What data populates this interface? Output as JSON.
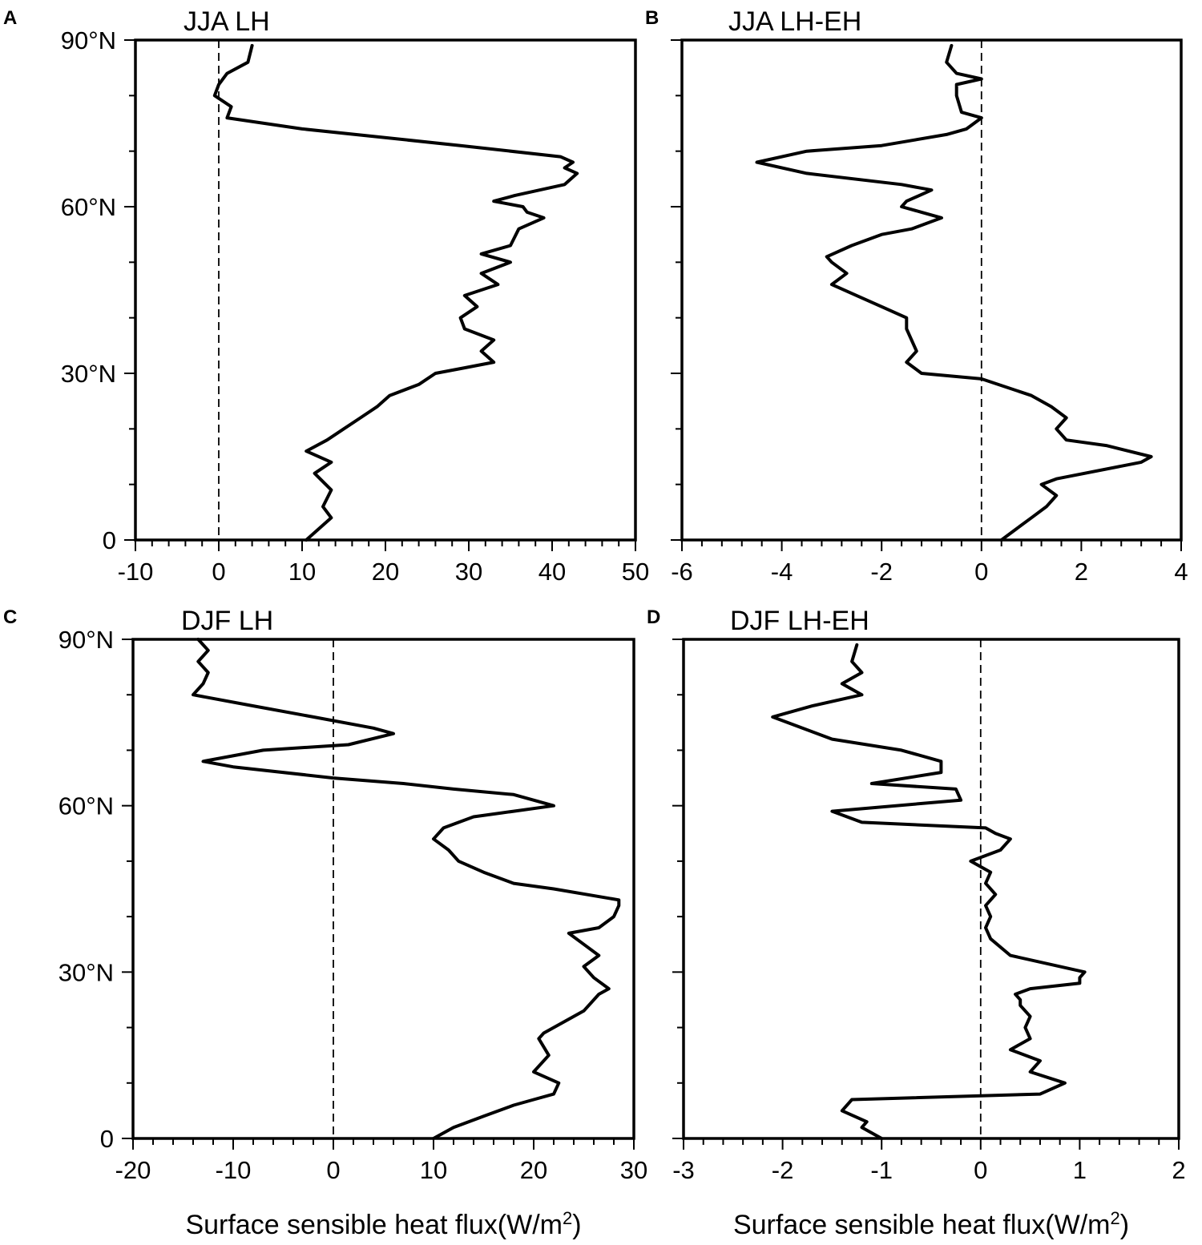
{
  "figure": {
    "xlabel": "Surface sensible heat flux(W/m",
    "xlabel_sup": "2",
    "xlabel_end": ")"
  },
  "chart_data": [
    {
      "type": "line",
      "panel": "A",
      "title": "JJA LH",
      "xlim": [
        -10,
        50
      ],
      "ylim": [
        0,
        90
      ],
      "xticks": [
        "-10",
        "0",
        "10",
        "20",
        "30",
        "40",
        "50"
      ],
      "xtick_values": [
        -10,
        0,
        10,
        20,
        30,
        40,
        50
      ],
      "yticks": [
        "0",
        "30°N",
        "60°N",
        "90°N"
      ],
      "ytick_values": [
        0,
        30,
        60,
        90
      ],
      "zero_line": 0,
      "grid": false,
      "series": [
        {
          "x": [
            10.5,
            12,
            13.5,
            12.5,
            13.5,
            11.5,
            13.5,
            10.5,
            13,
            15,
            17,
            19,
            20.5,
            24,
            26,
            29.5,
            33,
            31.5,
            33,
            29.5,
            29,
            31,
            29.5,
            33.5,
            31.5,
            35,
            31.5,
            35,
            36,
            39,
            37,
            36.5,
            33,
            35.5,
            38.5,
            41.5,
            43,
            41.5,
            42.5,
            41,
            29,
            10,
            1,
            1.5,
            -0.5,
            0,
            1,
            3.5,
            4
          ],
          "y": [
            0,
            2,
            4,
            6,
            9,
            12,
            14,
            16,
            18,
            20,
            22,
            24,
            26,
            28,
            30,
            31,
            32,
            34,
            36,
            38,
            40,
            42,
            44,
            46,
            48,
            50,
            51.5,
            53,
            56,
            58,
            59,
            60,
            61,
            62,
            63,
            64,
            66,
            67,
            68,
            69,
            71,
            74,
            76,
            78,
            80,
            82,
            84,
            86,
            89
          ]
        }
      ]
    },
    {
      "type": "line",
      "panel": "B",
      "title": "JJA LH-EH",
      "xlim": [
        -6,
        4
      ],
      "ylim": [
        0,
        90
      ],
      "xticks": [
        "-6",
        "-4",
        "-2",
        "0",
        "2",
        "4"
      ],
      "xtick_values": [
        -6,
        -4,
        -2,
        0,
        2,
        4
      ],
      "yticks": [
        "0",
        "30°N",
        "60°N",
        "90°N"
      ],
      "ytick_values": [
        0,
        30,
        60,
        90
      ],
      "zero_line": 0,
      "grid": false,
      "series": [
        {
          "x": [
            0.4,
            0.7,
            1,
            1.3,
            1.5,
            1.2,
            1.5,
            3.2,
            3.4,
            2.5,
            1.7,
            1.5,
            1.7,
            1.4,
            1,
            0,
            -1.2,
            -1.5,
            -1.3,
            -1.5,
            -1.5,
            -2.0,
            -2.5,
            -3.0,
            -2.7,
            -3.0,
            -3.1,
            -2.6,
            -2.0,
            -1.4,
            -0.8,
            -1.2,
            -1.6,
            -1.5,
            -1.0,
            -1.6,
            -3.5,
            -4.5,
            -3.5,
            -2.0,
            -0.7,
            -0.3,
            0.0,
            -0.4,
            -0.5,
            -0.5,
            0.0,
            -0.5,
            -0.7,
            -0.6
          ],
          "y": [
            0,
            2,
            4,
            6,
            8,
            10,
            11,
            14,
            15,
            17,
            18,
            20,
            22,
            24,
            26,
            29,
            30,
            32,
            34,
            38,
            40,
            42,
            44,
            46,
            48,
            50,
            51,
            53,
            55,
            56,
            58,
            59,
            60,
            61,
            63,
            64,
            66,
            68,
            70,
            71,
            73,
            74,
            76,
            77,
            80,
            82,
            83,
            84,
            86,
            89
          ]
        }
      ]
    },
    {
      "type": "line",
      "panel": "C",
      "title": "DJF LH",
      "xlim": [
        -20,
        30
      ],
      "ylim": [
        0,
        90
      ],
      "xticks": [
        "-20",
        "-10",
        "0",
        "10",
        "20",
        "30"
      ],
      "xtick_values": [
        -20,
        -10,
        0,
        10,
        20,
        30
      ],
      "yticks": [
        "0",
        "30°N",
        "60°N",
        "90°N"
      ],
      "ytick_values": [
        0,
        30,
        60,
        90
      ],
      "zero_line": 0,
      "grid": false,
      "series": [
        {
          "x": [
            10,
            12,
            15,
            18,
            20,
            22,
            22.5,
            20,
            21.5,
            20.5,
            21,
            23,
            25,
            26.5,
            27.5,
            26,
            25,
            26.5,
            25,
            23.5,
            26.5,
            28,
            28.5,
            28.5,
            22,
            18,
            15,
            12.5,
            11.5,
            10,
            11,
            14,
            18,
            22,
            18,
            12,
            7,
            0,
            -10,
            -13,
            -7,
            1.5,
            6,
            4,
            -2,
            -8,
            -14,
            -13,
            -12.5,
            -13.5,
            -12.5,
            -13.5
          ],
          "y": [
            0,
            2,
            4,
            6,
            7,
            8,
            10,
            12,
            15,
            18,
            19,
            21,
            23,
            26,
            27,
            29,
            31,
            33,
            35,
            37,
            38,
            40,
            42,
            43,
            45,
            46,
            48,
            50,
            52,
            54,
            56,
            58,
            59,
            60,
            62,
            63,
            64,
            65,
            67,
            68,
            70,
            71,
            73,
            74,
            76,
            78,
            80,
            82,
            84,
            86,
            88,
            90
          ]
        }
      ]
    },
    {
      "type": "line",
      "panel": "D",
      "title": "DJF LH-EH",
      "xlim": [
        -3,
        2
      ],
      "ylim": [
        0,
        90
      ],
      "xticks": [
        "-3",
        "-2",
        "-1",
        "0",
        "1",
        "2"
      ],
      "xtick_values": [
        -3,
        -2,
        -1,
        0,
        1,
        2
      ],
      "yticks": [
        "0",
        "30°N",
        "60°N",
        "90°N"
      ],
      "ytick_values": [
        0,
        30,
        60,
        90
      ],
      "zero_line": 0,
      "grid": false,
      "series": [
        {
          "x": [
            -1.0,
            -1.2,
            -1.15,
            -1.4,
            -1.3,
            0.6,
            0.85,
            0.5,
            0.6,
            0.3,
            0.5,
            0.45,
            0.5,
            0.4,
            0.4,
            0.35,
            0.5,
            1.0,
            1.0,
            1.05,
            0.3,
            0.1,
            0.05,
            0.1,
            0.05,
            0.15,
            0.05,
            0.1,
            -0.1,
            0.2,
            0.3,
            0.15,
            0.05,
            -1.2,
            -1.5,
            -0.2,
            -0.25,
            -1.1,
            -0.4,
            -0.4,
            -0.8,
            -1.5,
            -1.8,
            -2.1,
            -1.7,
            -1.2,
            -1.4,
            -1.2,
            -1.3,
            -1.25
          ],
          "y": [
            0,
            2,
            3,
            5,
            7,
            8,
            10,
            12,
            14,
            16,
            18,
            20,
            22,
            24,
            25,
            26,
            27,
            28,
            29,
            30,
            33,
            36,
            38,
            40,
            42,
            44,
            46,
            48,
            50,
            52,
            54,
            55,
            56,
            57,
            59,
            61,
            63,
            64,
            66,
            68,
            70,
            72,
            74,
            76,
            78,
            80,
            82,
            84,
            86,
            89
          ]
        }
      ]
    }
  ]
}
